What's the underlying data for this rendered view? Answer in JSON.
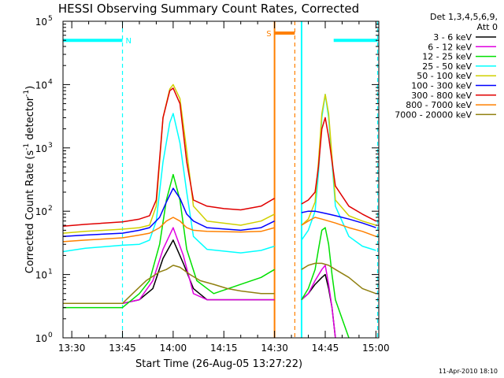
{
  "chart_data": {
    "type": "line",
    "title": "HESSI Observing Summary Count Rates, Corrected",
    "xlabel": "Start Time (26-Aug-05 13:27:22)",
    "ylabel": "Corrected Count Rate (s",
    "ylabel_sup": "-1",
    "ylabel_mid": " detector",
    "ylabel_sup2": "-1",
    "ylabel_end": ")",
    "y_scale": "log",
    "xlim": [
      "13:27:22",
      "15:12:00"
    ],
    "ylim": [
      1,
      100000
    ],
    "x_ticks": [
      "13:30",
      "13:45",
      "14:00",
      "14:15",
      "14:30",
      "14:45",
      "15:00"
    ],
    "x_tick_minutes": [
      30,
      45,
      60,
      75,
      90,
      105,
      120
    ],
    "y_ticks": [
      {
        "value": 1,
        "base": "10",
        "exp": "0"
      },
      {
        "value": 10,
        "base": "10",
        "exp": "1"
      },
      {
        "value": 100,
        "base": "10",
        "exp": "2"
      },
      {
        "value": 1000,
        "base": "10",
        "exp": "3"
      },
      {
        "value": 10000,
        "base": "10",
        "exp": "4"
      },
      {
        "value": 100000,
        "base": "10",
        "exp": "5"
      }
    ],
    "legend_header": [
      "Det 1,3,4,5,6,9,",
      "Att 0"
    ],
    "legend_position": "right",
    "series": [
      {
        "name": "3 - 6 keV",
        "color": "#000000",
        "x": [
          27.4,
          34,
          45,
          50,
          54,
          57,
          60,
          63,
          66,
          70,
          75,
          80,
          86,
          90
        ],
        "y": [
          3.5,
          3.5,
          3.5,
          4,
          6,
          18,
          35,
          15,
          6,
          4,
          4,
          4,
          4,
          4
        ]
      },
      {
        "name": "6 - 12 keV",
        "color": "#e000e0",
        "x": [
          27.4,
          34,
          45,
          50,
          54,
          57,
          60,
          63,
          66,
          70,
          75,
          80,
          86,
          90
        ],
        "y": [
          3.5,
          3.5,
          3.5,
          4,
          8,
          25,
          55,
          20,
          5,
          4,
          4,
          4,
          4,
          4
        ]
      },
      {
        "name": "12 - 25 keV",
        "color": "#00e000",
        "x": [
          27.4,
          34,
          45,
          50,
          53,
          56,
          58,
          60,
          62,
          64,
          67,
          72,
          80,
          86,
          90
        ],
        "y": [
          3,
          3,
          3,
          5,
          8,
          30,
          150,
          380,
          150,
          25,
          8,
          5,
          7,
          9,
          12
        ]
      },
      {
        "name": "25 - 50 keV",
        "color": "#00ffff",
        "x": [
          27.4,
          34,
          45,
          50,
          53,
          55,
          57,
          59,
          60,
          62,
          64,
          66,
          70,
          80,
          86,
          90
        ],
        "y": [
          23,
          26,
          29,
          30,
          35,
          70,
          600,
          2500,
          3500,
          1200,
          200,
          40,
          25,
          22,
          24,
          28
        ]
      },
      {
        "name": "50 - 100 keV",
        "color": "#d0d000",
        "x": [
          27.4,
          34,
          45,
          50,
          53,
          55,
          57,
          59,
          60,
          62,
          64,
          66,
          70,
          80,
          86,
          90
        ],
        "y": [
          45,
          48,
          52,
          55,
          60,
          120,
          3000,
          8500,
          10000,
          6000,
          900,
          120,
          70,
          60,
          70,
          90
        ]
      },
      {
        "name": "100 - 300 keV",
        "color": "#0000ff",
        "x": [
          27.4,
          34,
          45,
          50,
          53,
          56,
          58,
          60,
          62,
          64,
          66,
          70,
          80,
          86,
          90
        ],
        "y": [
          40,
          42,
          45,
          50,
          55,
          80,
          140,
          230,
          160,
          90,
          70,
          55,
          50,
          55,
          70
        ]
      },
      {
        "name": "300 - 800 keV",
        "color": "#e00000",
        "x": [
          27.4,
          34,
          45,
          50,
          53,
          55,
          57,
          59,
          60,
          62,
          64,
          66,
          70,
          75,
          80,
          86,
          90
        ],
        "y": [
          58,
          62,
          68,
          75,
          85,
          150,
          3000,
          8000,
          8800,
          5000,
          600,
          150,
          120,
          110,
          105,
          120,
          160
        ]
      },
      {
        "name": "800 - 7000 keV",
        "color": "#ff8000",
        "x": [
          27.4,
          34,
          45,
          50,
          53,
          56,
          58,
          60,
          62,
          64,
          66,
          70,
          80,
          86,
          90
        ],
        "y": [
          33,
          35,
          38,
          42,
          45,
          55,
          70,
          80,
          70,
          55,
          50,
          48,
          47,
          48,
          55
        ]
      },
      {
        "name": "7000 - 20000 keV",
        "color": "#908010",
        "x": [
          27.4,
          34,
          45,
          48,
          52,
          56,
          58,
          60,
          62,
          65,
          68,
          72,
          76,
          80,
          86,
          90
        ],
        "y": [
          3.5,
          3.5,
          3.5,
          5,
          8,
          11,
          12,
          14,
          13,
          10,
          8,
          7,
          6,
          5.5,
          5,
          5
        ]
      }
    ],
    "series_after": [
      {
        "name": "3 - 6 keV",
        "x": [
          98,
          100,
          102,
          104,
          105,
          106,
          107,
          108
        ],
        "y": [
          4,
          5,
          7,
          9,
          10,
          6,
          3,
          1
        ]
      },
      {
        "name": "6 - 12 keV",
        "x": [
          98,
          100,
          102,
          104,
          105,
          106,
          107,
          108
        ],
        "y": [
          4,
          5,
          8,
          12,
          14,
          7,
          3,
          1
        ]
      },
      {
        "name": "12 - 25 keV",
        "x": [
          98,
          100,
          102,
          103,
          104,
          105,
          106,
          107,
          108,
          110,
          112
        ],
        "y": [
          4,
          6,
          12,
          25,
          50,
          55,
          30,
          10,
          4,
          2,
          1
        ]
      },
      {
        "name": "25 - 50 keV",
        "x": [
          98,
          100,
          102,
          103,
          104,
          105,
          106,
          108,
          112,
          116,
          120
        ],
        "y": [
          35,
          50,
          100,
          400,
          3000,
          7000,
          3000,
          120,
          40,
          28,
          24
        ]
      },
      {
        "name": "50 - 100 keV",
        "x": [
          98,
          100,
          102,
          103,
          104,
          105,
          106,
          108,
          112,
          116,
          120
        ],
        "y": [
          60,
          75,
          140,
          600,
          3500,
          7000,
          3500,
          150,
          85,
          70,
          60
        ]
      },
      {
        "name": "100 - 300 keV",
        "x": [
          98,
          100,
          102,
          104,
          106,
          108,
          112,
          116,
          120
        ],
        "y": [
          95,
          100,
          100,
          95,
          90,
          85,
          75,
          65,
          55
        ]
      },
      {
        "name": "300 - 800 keV",
        "x": [
          98,
          100,
          102,
          103,
          104,
          105,
          106,
          108,
          112,
          116,
          120
        ],
        "y": [
          130,
          150,
          200,
          500,
          2000,
          3000,
          1500,
          250,
          120,
          90,
          70
        ]
      },
      {
        "name": "800 - 7000 keV",
        "x": [
          98,
          100,
          102,
          104,
          106,
          108,
          112,
          116,
          120
        ],
        "y": [
          60,
          70,
          80,
          75,
          70,
          65,
          55,
          48,
          40
        ]
      },
      {
        "name": "7000 - 20000 keV",
        "x": [
          98,
          100,
          102,
          104,
          106,
          108,
          112,
          116,
          120
        ],
        "y": [
          12,
          14,
          15,
          15,
          14,
          12,
          9,
          6,
          5
        ]
      }
    ],
    "flags": [
      {
        "label": "N",
        "color": "#00ffff",
        "x_start": 27.4,
        "x_end": 45,
        "y": 50000
      },
      {
        "label": "",
        "color": "#00ffff",
        "x_start": 107.5,
        "x_end": 120.5,
        "y": 50000
      },
      {
        "label": "S",
        "color": "#ff8000",
        "x_start": 90,
        "x_end": 96,
        "y": 65000
      }
    ],
    "vlines": [
      {
        "x": 45,
        "color": "#00ffff",
        "style": "dashed"
      },
      {
        "x": 90,
        "color": "#ff8000",
        "style": "solid"
      },
      {
        "x": 96,
        "color": "#ff8000",
        "style": "dashed"
      },
      {
        "x": 98,
        "color": "#00ffff",
        "style": "solid"
      },
      {
        "x": 120.5,
        "color": "#00ffff",
        "style": "dashed"
      }
    ],
    "footer_date": "11-Apr-2010 18:10"
  }
}
